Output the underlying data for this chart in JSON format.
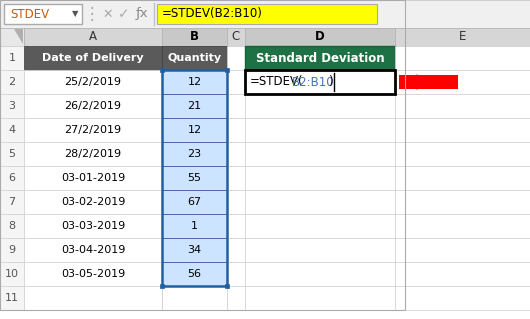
{
  "formula_bar_text": "=STDEV(B2:B10)",
  "name_box": "STDEV",
  "col_A_data": [
    "Date of Delivery",
    "25/2/2019",
    "26/2/2019",
    "27/2/2019",
    "28/2/2019",
    "03-01-2019",
    "03-02-2019",
    "03-03-2019",
    "03-04-2019",
    "03-05-2019",
    ""
  ],
  "col_B_data": [
    "Quantity",
    "12",
    "21",
    "12",
    "23",
    "55",
    "67",
    "1",
    "34",
    "56",
    ""
  ],
  "col_D_header": "Standard Deviation",
  "col_D2_formula_black1": "=STDEV(",
  "col_D2_formula_blue": "B2:B10",
  "col_D2_formula_black2": ")",
  "bg_color": "#f0f0f0",
  "formula_bar_bg": "#ffff00",
  "col_AB_header_bg": "#5a5a5a",
  "col_D_header_bg": "#1e7145",
  "cell_bg_white": "#ffffff",
  "selected_col_bg": "#cce4ff",
  "arrow_color": "#ff0000",
  "text_color_white": "#ffffff",
  "text_color_dark": "#000000",
  "text_color_gray": "#555555",
  "formula_blue": "#4472c4",
  "col_header_bg": "#d6d6d6",
  "col_header_selected_bg": "#d0d0d0",
  "row_num_bg": "#f5f5f5",
  "grid_light": "#d0d0d0",
  "toolbar_bg": "#f0f0f0",
  "name_box_text_color": "#c55a11",
  "formula_bar_text_color": "#000000"
}
